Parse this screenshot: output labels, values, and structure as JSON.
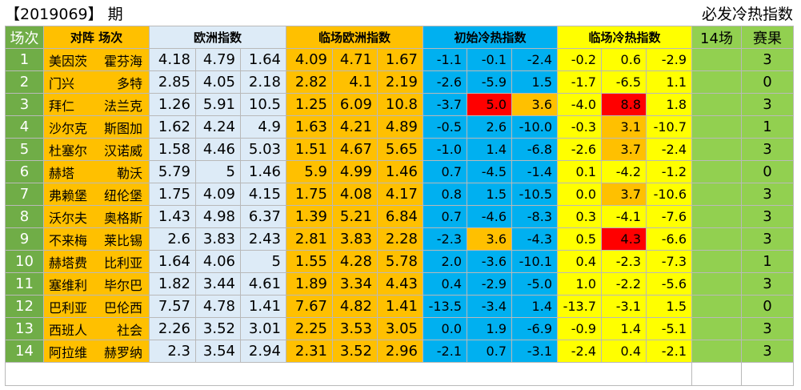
{
  "header": {
    "period": "【2019069】 期",
    "right_title": "必发冷热指数"
  },
  "columns": {
    "idx": "场次",
    "teams": "对阵 场次",
    "euro": "欧洲指数",
    "live_euro": "临场欧洲指数",
    "initial_hot": "初始冷热指数",
    "live_hot": "临场冷热指数",
    "fourteen": "14场",
    "result": "赛果"
  },
  "rows": [
    {
      "idx": "1",
      "home": "美因茨",
      "away": "霍芬海",
      "euro": [
        "4.18",
        "4.79",
        "1.64"
      ],
      "live": [
        "4.09",
        "4.71",
        "1.67"
      ],
      "init": [
        "-1.1",
        "-0.1",
        "-2.4"
      ],
      "hot": [
        "-0.2",
        "0.6",
        "-2.9"
      ],
      "result": "3"
    },
    {
      "idx": "2",
      "home": "门兴",
      "away": "多特",
      "euro": [
        "2.85",
        "4.05",
        "2.18"
      ],
      "live": [
        "2.82",
        "4.1",
        "2.19"
      ],
      "init": [
        "-2.6",
        "-5.9",
        "1.5"
      ],
      "hot": [
        "-1.7",
        "-6.5",
        "1.1"
      ],
      "result": "0"
    },
    {
      "idx": "3",
      "home": "拜仁",
      "away": "法兰克",
      "euro": [
        "1.26",
        "5.91",
        "10.5"
      ],
      "live": [
        "1.25",
        "6.09",
        "10.8"
      ],
      "init": [
        "-3.7",
        "5.0",
        "3.6"
      ],
      "hot": [
        "-4.0",
        "8.8",
        "1.8"
      ],
      "result": "3"
    },
    {
      "idx": "4",
      "home": "沙尔克",
      "away": "斯图加",
      "euro": [
        "1.62",
        "4.24",
        "4.9"
      ],
      "live": [
        "1.63",
        "4.21",
        "4.89"
      ],
      "init": [
        "-0.5",
        "2.6",
        "-10.0"
      ],
      "hot": [
        "-0.3",
        "3.1",
        "-10.7"
      ],
      "result": "1"
    },
    {
      "idx": "5",
      "home": "杜塞尔",
      "away": "汉诺威",
      "euro": [
        "1.58",
        "4.46",
        "5.03"
      ],
      "live": [
        "1.51",
        "4.67",
        "5.65"
      ],
      "init": [
        "-1.0",
        "1.4",
        "-6.8"
      ],
      "hot": [
        "-2.6",
        "3.7",
        "-2.4"
      ],
      "result": "3"
    },
    {
      "idx": "6",
      "home": "赫塔",
      "away": "勒沃",
      "euro": [
        "5.79",
        "5",
        "1.46"
      ],
      "live": [
        "5.9",
        "4.99",
        "1.46"
      ],
      "init": [
        "0.7",
        "-4.5",
        "-1.4"
      ],
      "hot": [
        "0.1",
        "-4.2",
        "-1.2"
      ],
      "result": "0"
    },
    {
      "idx": "7",
      "home": "弗赖堡",
      "away": "纽伦堡",
      "euro": [
        "1.75",
        "4.09",
        "4.15"
      ],
      "live": [
        "1.75",
        "4.08",
        "4.17"
      ],
      "init": [
        "0.8",
        "1.5",
        "-10.5"
      ],
      "hot": [
        "0.0",
        "3.7",
        "-10.6"
      ],
      "result": "3"
    },
    {
      "idx": "8",
      "home": "沃尔夫",
      "away": "奥格斯",
      "euro": [
        "1.43",
        "4.98",
        "6.37"
      ],
      "live": [
        "1.39",
        "5.21",
        "6.84"
      ],
      "init": [
        "0.7",
        "-4.6",
        "-8.3"
      ],
      "hot": [
        "0.3",
        "-4.1",
        "-7.6"
      ],
      "result": "3"
    },
    {
      "idx": "9",
      "home": "不来梅",
      "away": "莱比锡",
      "euro": [
        "2.6",
        "3.83",
        "2.43"
      ],
      "live": [
        "2.81",
        "3.83",
        "2.28"
      ],
      "init": [
        "-2.3",
        "3.6",
        "-4.3"
      ],
      "hot": [
        "0.5",
        "4.3",
        "-6.6"
      ],
      "result": "3"
    },
    {
      "idx": "10",
      "home": "赫塔费",
      "away": "比利亚",
      "euro": [
        "1.64",
        "4.06",
        "5"
      ],
      "live": [
        "1.55",
        "4.28",
        "5.78"
      ],
      "init": [
        "2.0",
        "-3.6",
        "-10.1"
      ],
      "hot": [
        "0.4",
        "-2.3",
        "-7.3"
      ],
      "result": "1"
    },
    {
      "idx": "11",
      "home": "塞维利",
      "away": "毕尔巴",
      "euro": [
        "1.82",
        "3.44",
        "4.61"
      ],
      "live": [
        "1.89",
        "3.34",
        "4.43"
      ],
      "init": [
        "0.4",
        "-2.9",
        "-5.0"
      ],
      "hot": [
        "1.0",
        "-2.2",
        "-5.6"
      ],
      "result": "3"
    },
    {
      "idx": "12",
      "home": "巴利亚",
      "away": "巴伦西",
      "euro": [
        "7.57",
        "4.78",
        "1.41"
      ],
      "live": [
        "7.67",
        "4.82",
        "1.41"
      ],
      "init": [
        "-13.5",
        "-3.4",
        "1.4"
      ],
      "hot": [
        "-13.7",
        "-3.1",
        "1.5"
      ],
      "result": "0"
    },
    {
      "idx": "13",
      "home": "西班人",
      "away": "社会",
      "euro": [
        "2.26",
        "3.52",
        "3.01"
      ],
      "live": [
        "2.25",
        "3.53",
        "3.05"
      ],
      "init": [
        "0.0",
        "1.9",
        "-6.9"
      ],
      "hot": [
        "-0.9",
        "1.4",
        "-5.1"
      ],
      "result": "3"
    },
    {
      "idx": "14",
      "home": "阿拉维",
      "away": "赫罗纳",
      "euro": [
        "2.3",
        "3.54",
        "2.94"
      ],
      "live": [
        "2.31",
        "3.52",
        "2.96"
      ],
      "init": [
        "-2.1",
        "0.7",
        "-3.1"
      ],
      "hot": [
        "-2.4",
        "0.4",
        "-2.1"
      ],
      "result": "3"
    }
  ],
  "highlights": {
    "red": "#ff0000",
    "orange": "#ffc000",
    "cells": [
      {
        "row": 2,
        "group": "init",
        "col": 1,
        "color": "red"
      },
      {
        "row": 2,
        "group": "init",
        "col": 2,
        "color": "orange"
      },
      {
        "row": 2,
        "group": "hot",
        "col": 1,
        "color": "red"
      },
      {
        "row": 3,
        "group": "hot",
        "col": 1,
        "color": "orange"
      },
      {
        "row": 4,
        "group": "hot",
        "col": 1,
        "color": "orange"
      },
      {
        "row": 6,
        "group": "hot",
        "col": 1,
        "color": "orange"
      },
      {
        "row": 8,
        "group": "init",
        "col": 1,
        "color": "orange"
      },
      {
        "row": 8,
        "group": "hot",
        "col": 1,
        "color": "red"
      }
    ]
  }
}
